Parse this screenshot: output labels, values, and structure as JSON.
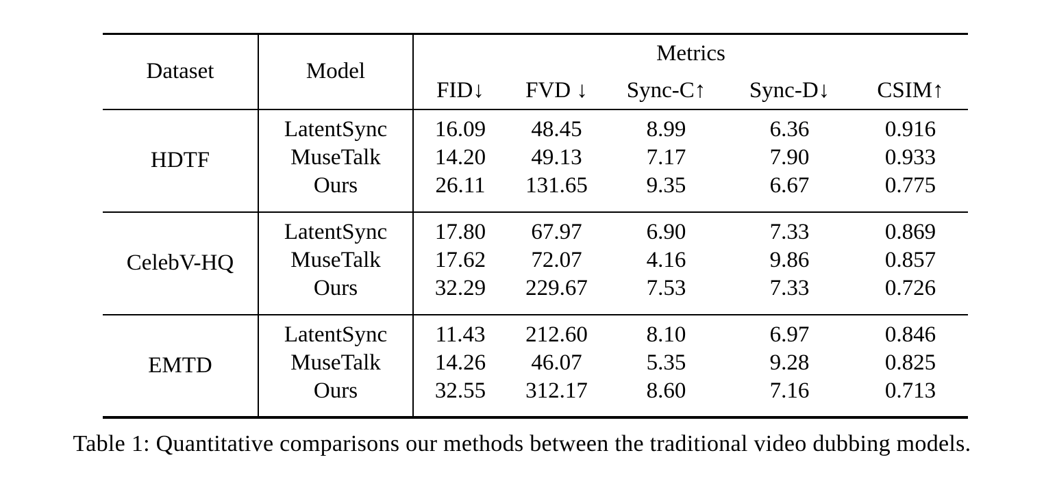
{
  "colors": {
    "background": "#ffffff",
    "text": "#000000"
  },
  "table": {
    "caption": "Table 1: Quantitative comparisons our methods between the traditional video dubbing models.",
    "headers": {
      "dataset": "Dataset",
      "model": "Model",
      "metrics_group": "Metrics",
      "metrics": [
        "FID↓",
        "FVD ↓",
        "Sync-C↑",
        "Sync-D↓",
        "CSIM↑"
      ]
    },
    "groups": [
      {
        "dataset": "HDTF",
        "rows": [
          {
            "model": "LatentSync",
            "values": [
              "16.09",
              "48.45",
              "8.99",
              "6.36",
              "0.916"
            ],
            "bold": [
              false,
              true,
              false,
              true,
              false
            ]
          },
          {
            "model": "MuseTalk",
            "values": [
              "14.20",
              "49.13",
              "7.17",
              "7.90",
              "0.933"
            ],
            "bold": [
              true,
              false,
              false,
              false,
              false
            ]
          },
          {
            "model": "Ours",
            "values": [
              "26.11",
              "131.65",
              "9.35",
              "6.67",
              "0.775"
            ],
            "bold": [
              false,
              false,
              true,
              false,
              false
            ]
          }
        ]
      },
      {
        "dataset": "CelebV-HQ",
        "rows": [
          {
            "model": "LatentSync",
            "values": [
              "17.80",
              "67.97",
              "6.90",
              "7.33",
              "0.869"
            ],
            "bold": [
              false,
              true,
              false,
              false,
              false
            ]
          },
          {
            "model": "MuseTalk",
            "values": [
              "17.62",
              "72.07",
              "4.16",
              "9.86",
              "0.857"
            ],
            "bold": [
              true,
              false,
              false,
              false,
              false
            ]
          },
          {
            "model": "Ours",
            "values": [
              "32.29",
              "229.67",
              "7.53",
              "7.33",
              "0.726"
            ],
            "bold": [
              false,
              false,
              true,
              true,
              false
            ]
          }
        ]
      },
      {
        "dataset": "EMTD",
        "rows": [
          {
            "model": "LatentSync",
            "values": [
              "11.43",
              "212.60",
              "8.10",
              "6.97",
              "0.846"
            ],
            "bold": [
              true,
              false,
              false,
              true,
              false
            ]
          },
          {
            "model": "MuseTalk",
            "values": [
              "14.26",
              "46.07",
              "5.35",
              "9.28",
              "0.825"
            ],
            "bold": [
              false,
              true,
              false,
              false,
              false
            ]
          },
          {
            "model": "Ours",
            "values": [
              "32.55",
              "312.17",
              "8.60",
              "7.16",
              "0.713"
            ],
            "bold": [
              false,
              false,
              true,
              false,
              false
            ]
          }
        ]
      }
    ]
  }
}
